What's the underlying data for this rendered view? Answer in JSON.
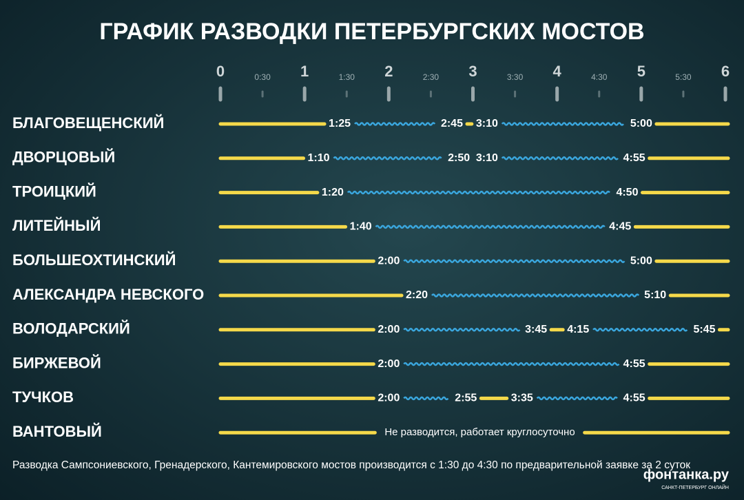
{
  "chart_data": {
    "type": "gantt",
    "title": "ГРАФИК РАЗВОДКИ ПЕТЕРБУРГСКИХ МОСТОВ",
    "xlim": [
      0,
      6
    ],
    "xticks": [
      0,
      {
        "value": 0.5,
        "label": "0:30"
      },
      1,
      {
        "value": 1.5,
        "label": "1:30"
      },
      2,
      {
        "value": 2.5,
        "label": "2:30"
      },
      3,
      {
        "value": 3.5,
        "label": "3:30"
      },
      4,
      {
        "value": 4.5,
        "label": "4:30"
      },
      5,
      {
        "value": 5.5,
        "label": "5:30"
      },
      6
    ],
    "closed_color": "#f5d94a",
    "open_color": "#3aa6dd",
    "rows": [
      {
        "name": "БЛАГОВЕЩЕНСКИЙ",
        "values": [
          [
            1.4167,
            2.75
          ],
          [
            3.1667,
            5
          ]
        ],
        "value_labels": [
          [
            "1:25",
            "2:45"
          ],
          [
            "3:10",
            "5:00"
          ]
        ]
      },
      {
        "name": "ДВОРЦОВЫЙ",
        "values": [
          [
            1.1667,
            2.8333
          ],
          [
            3.1667,
            4.9167
          ]
        ],
        "value_labels": [
          [
            "1:10",
            "2:50"
          ],
          [
            "3:10",
            "4:55"
          ]
        ]
      },
      {
        "name": "ТРОИЦКИЙ",
        "values": [
          [
            1.3333,
            4.8333
          ]
        ],
        "value_labels": [
          [
            "1:20",
            "4:50"
          ]
        ]
      },
      {
        "name": "ЛИТЕЙНЫЙ",
        "values": [
          [
            1.6667,
            4.75
          ]
        ],
        "value_labels": [
          [
            "1:40",
            "4:45"
          ]
        ]
      },
      {
        "name": "БОЛЬШЕОХТИНСКИЙ",
        "values": [
          [
            2,
            5
          ]
        ],
        "value_labels": [
          [
            "2:00",
            "5:00"
          ]
        ]
      },
      {
        "name": "АЛЕКСАНДРА НЕВСКОГО",
        "values": [
          [
            2.3333,
            5.1667
          ]
        ],
        "value_labels": [
          [
            "2:20",
            "5:10"
          ]
        ]
      },
      {
        "name": "ВОЛОДАРСКИЙ",
        "values": [
          [
            2,
            3.75
          ],
          [
            4.25,
            5.75
          ]
        ],
        "value_labels": [
          [
            "2:00",
            "3:45"
          ],
          [
            "4:15",
            "5:45"
          ]
        ]
      },
      {
        "name": "БИРЖЕВОЙ",
        "values": [
          [
            2,
            4.9167
          ]
        ],
        "value_labels": [
          [
            "2:00",
            "4:55"
          ]
        ]
      },
      {
        "name": "ТУЧКОВ",
        "values": [
          [
            2,
            2.9167
          ],
          [
            3.5833,
            4.9167
          ]
        ],
        "value_labels": [
          [
            "2:00",
            "2:55"
          ],
          [
            "3:35",
            "4:55"
          ]
        ]
      },
      {
        "name": "ВАНТОВЫЙ",
        "values": [],
        "value_labels": [],
        "note": "Не разводится, работает круглосуточно"
      }
    ],
    "footnote": "Разводка Сампсониевского, Гренадерского, Кантемировского мостов производится с 1:30 до 4:30 по предварительной заявке за 2 суток",
    "logo": "фонтанка.ру",
    "logo_subtitle": "САНКТ-ПЕТЕРБУРГ ОНЛАЙН"
  }
}
